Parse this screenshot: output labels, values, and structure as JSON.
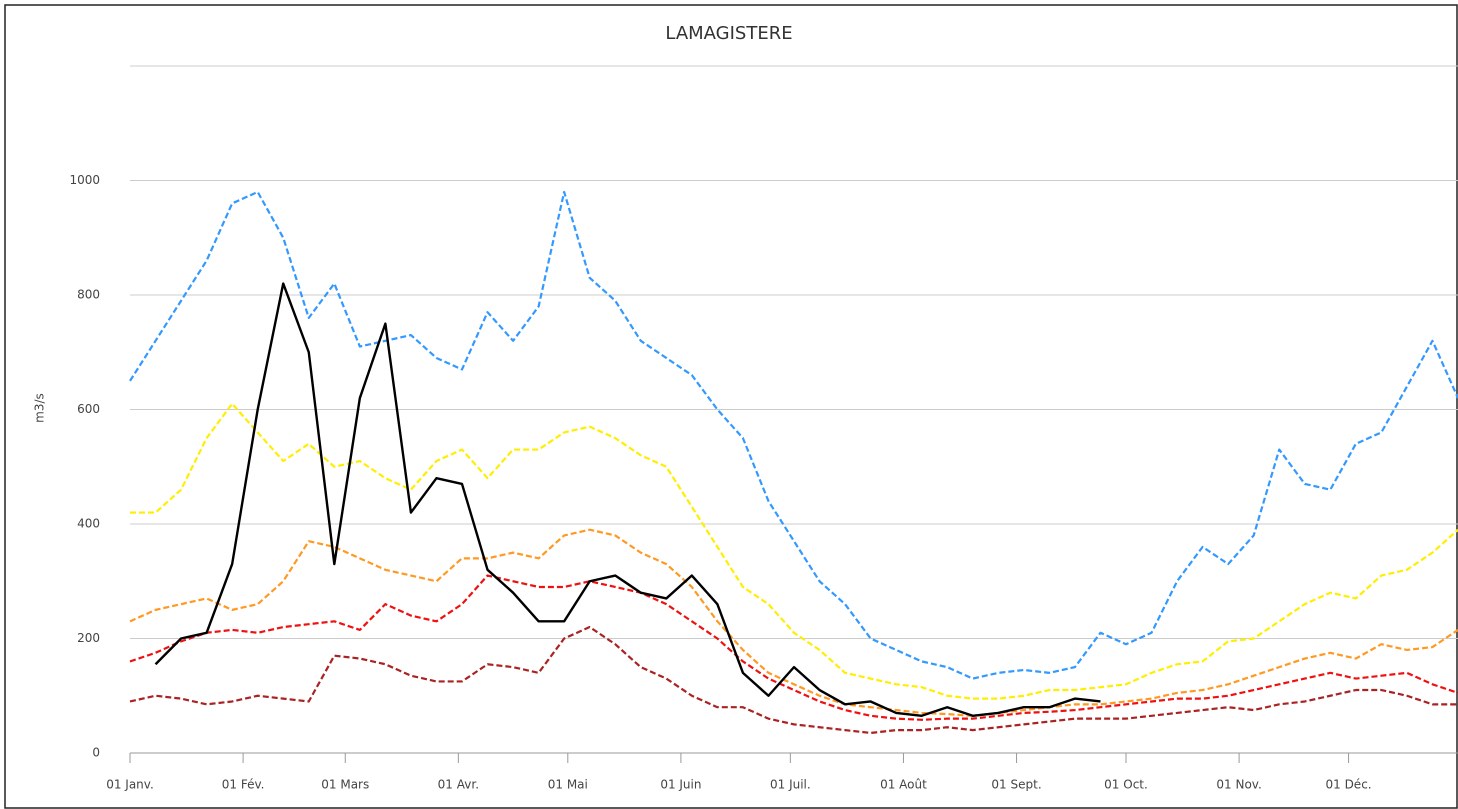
{
  "chart_data": {
    "type": "line",
    "title": "LAMAGISTERE",
    "y_label": "m3/s",
    "x": [
      0,
      7,
      14,
      21,
      28,
      35,
      42,
      49,
      56,
      63,
      70,
      77,
      84,
      91,
      98,
      105,
      112,
      119,
      126,
      133,
      140,
      147,
      154,
      161,
      168,
      175,
      182,
      189,
      196,
      203,
      210,
      217,
      224,
      231,
      238,
      245,
      252,
      259,
      266,
      273,
      280,
      287,
      294,
      301,
      308,
      315,
      322,
      329,
      336,
      343,
      350,
      357,
      364
    ],
    "xlim": [
      0,
      364
    ],
    "xticks": [
      {
        "value": 0,
        "label": "01 Janv."
      },
      {
        "value": 31,
        "label": "01 Fév."
      },
      {
        "value": 59,
        "label": "01 Mars"
      },
      {
        "value": 90,
        "label": "01 Avr."
      },
      {
        "value": 120,
        "label": "01 Mai"
      },
      {
        "value": 151,
        "label": "01 Juin"
      },
      {
        "value": 181,
        "label": "01 Juil."
      },
      {
        "value": 212,
        "label": "01 Août"
      },
      {
        "value": 243,
        "label": "01 Sept."
      },
      {
        "value": 273,
        "label": "01 Oct."
      },
      {
        "value": 304,
        "label": "01 Nov."
      },
      {
        "value": 334,
        "label": "01 Déc."
      }
    ],
    "ylim": [
      0,
      1200
    ],
    "yticks": [
      0,
      200,
      400,
      600,
      800,
      1000
    ],
    "grid": true,
    "series": [
      {
        "color": "#3399ff",
        "style": "dashed",
        "values": [
          650,
          720,
          790,
          860,
          960,
          980,
          900,
          760,
          820,
          710,
          720,
          730,
          690,
          670,
          770,
          720,
          780,
          980,
          830,
          790,
          720,
          690,
          660,
          600,
          550,
          440,
          370,
          300,
          260,
          200,
          180,
          160,
          150,
          130,
          140,
          145,
          140,
          150,
          210,
          190,
          210,
          300,
          360,
          330,
          380,
          530,
          470,
          460,
          540,
          560,
          640,
          720,
          620
        ]
      },
      {
        "color": "#ffee00",
        "style": "dashed",
        "values": [
          420,
          420,
          460,
          550,
          610,
          560,
          510,
          540,
          500,
          510,
          480,
          460,
          510,
          530,
          480,
          530,
          530,
          560,
          570,
          550,
          520,
          500,
          430,
          360,
          290,
          260,
          210,
          180,
          140,
          130,
          120,
          115,
          100,
          95,
          95,
          100,
          110,
          110,
          115,
          120,
          140,
          155,
          160,
          195,
          200,
          230,
          260,
          280,
          270,
          310,
          320,
          350,
          390
        ]
      },
      {
        "color": "#ff9922",
        "style": "dashed",
        "values": [
          230,
          250,
          260,
          270,
          250,
          260,
          300,
          370,
          360,
          340,
          320,
          310,
          300,
          340,
          340,
          350,
          340,
          380,
          390,
          380,
          350,
          330,
          290,
          230,
          180,
          140,
          120,
          100,
          85,
          80,
          75,
          70,
          68,
          65,
          70,
          75,
          80,
          85,
          85,
          90,
          95,
          105,
          110,
          120,
          135,
          150,
          165,
          175,
          165,
          190,
          180,
          185,
          215
        ]
      },
      {
        "color": "#ee1111",
        "style": "dashed",
        "values": [
          160,
          175,
          195,
          210,
          215,
          210,
          220,
          225,
          230,
          215,
          260,
          240,
          230,
          260,
          310,
          300,
          290,
          290,
          300,
          290,
          280,
          260,
          230,
          200,
          160,
          130,
          110,
          90,
          75,
          65,
          60,
          58,
          60,
          60,
          65,
          70,
          72,
          75,
          80,
          85,
          90,
          95,
          95,
          100,
          110,
          120,
          130,
          140,
          130,
          135,
          140,
          120,
          105
        ]
      },
      {
        "color": "#aa2222",
        "style": "dashed",
        "values": [
          90,
          100,
          95,
          85,
          90,
          100,
          95,
          90,
          170,
          165,
          155,
          135,
          125,
          125,
          155,
          150,
          140,
          200,
          220,
          190,
          150,
          130,
          100,
          80,
          80,
          60,
          50,
          45,
          40,
          35,
          40,
          40,
          45,
          40,
          45,
          50,
          55,
          60,
          60,
          60,
          65,
          70,
          75,
          80,
          75,
          85,
          90,
          100,
          110,
          110,
          100,
          85,
          85
        ]
      },
      {
        "color": "#000000",
        "style": "solid",
        "values": [
          null,
          155,
          200,
          210,
          330,
          600,
          820,
          700,
          330,
          620,
          750,
          420,
          480,
          470,
          320,
          280,
          230,
          230,
          300,
          310,
          280,
          270,
          310,
          260,
          140,
          100,
          150,
          110,
          85,
          90,
          70,
          65,
          80,
          65,
          70,
          80,
          80,
          95,
          90,
          null,
          null,
          null,
          null,
          null,
          null,
          null,
          null,
          null,
          null,
          null,
          null,
          null,
          null
        ]
      }
    ]
  }
}
